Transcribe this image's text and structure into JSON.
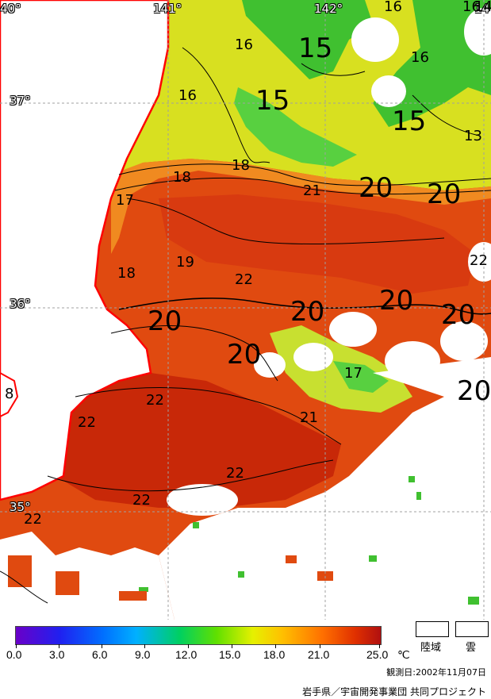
{
  "map": {
    "longitude_labels": [
      "40°",
      "141°",
      "142°",
      "14"
    ],
    "latitude_labels": [
      "37°",
      "36°",
      "35°"
    ],
    "isotherm_labels_small": [
      "16",
      "16",
      "16",
      "16",
      "13",
      "18",
      "18",
      "21",
      "17",
      "18",
      "19",
      "22",
      "22",
      "22",
      "22",
      "17",
      "21",
      "22",
      "22",
      "22",
      "8",
      "14",
      "16"
    ],
    "isotherm_labels_large": [
      "15",
      "15",
      "15",
      "20",
      "20",
      "20",
      "20",
      "20",
      "20",
      "20",
      "20"
    ]
  },
  "legend": {
    "scale_labels": [
      "0.0",
      "3.0",
      "6.0",
      "9.0",
      "12.0",
      "15.0",
      "18.0",
      "21.0",
      "25.0"
    ],
    "unit": "℃",
    "land_label": "陸域",
    "cloud_label": "雲",
    "observation_date": "観測日:2002年11月07日",
    "credit": "岩手県／宇宙開発事業団 共同プロジェクト"
  },
  "colors": {
    "land": "#ffffff",
    "coastline": "#ff0000",
    "cloud": "#ffffff",
    "warm_sea": "#e04a10",
    "mid_sea": "#f08a20",
    "cool_sea": "#d8e020",
    "cold_sea": "#40c030"
  }
}
